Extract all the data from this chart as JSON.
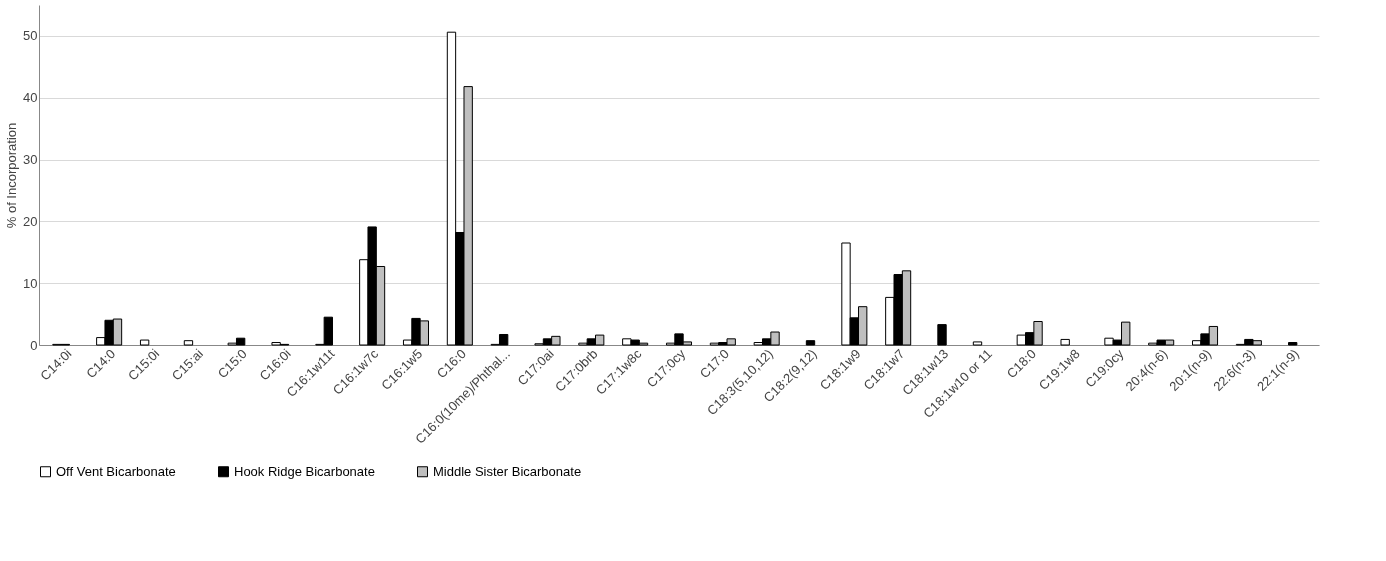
{
  "chart_data": {
    "type": "bar",
    "ylabel": "% of Incorporation",
    "categories": [
      "C14:0i",
      "C14:0",
      "C15:0i",
      "C15:ai",
      "C15:0",
      "C16:0i",
      "C16:1w11t",
      "C16:1w7c",
      "C16:1w5",
      "C16:0",
      "C16:0(10me)/Phthal...",
      "C17:0ai",
      "C17:0brb",
      "C17:1w8c",
      "C17:0cy",
      "C17:0",
      "C18:3(5,10,12)",
      "C18:2(9,12)",
      "C18:1w9",
      "C18:1w7",
      "C18:1w13",
      "C18:1w10 or 11",
      "C18:0",
      "C19:1w8",
      "C19:0cy",
      "20:4(n-6)",
      "20:1(n-9)",
      "22:6(n-3)",
      "22:1(n-9)"
    ],
    "series": [
      {
        "name": "Off Vent Bicarbonate",
        "color": "#ffffff",
        "values": [
          0.1,
          1.2,
          0.8,
          0.7,
          0.3,
          0.4,
          0.1,
          13.8,
          0.8,
          50.6,
          0.1,
          0.2,
          0.3,
          1.0,
          0.3,
          0.3,
          0.4,
          0,
          16.5,
          7.7,
          0,
          0.5,
          1.6,
          0.9,
          1.1,
          0.3,
          0.7,
          0.1,
          0
        ]
      },
      {
        "name": "Hook Ridge Bicarbonate",
        "color": "#000000",
        "values": [
          0.1,
          4.0,
          0,
          0,
          1.1,
          0.1,
          4.5,
          19.1,
          4.3,
          18.2,
          1.7,
          1.0,
          1.0,
          0.8,
          1.8,
          0.4,
          1.0,
          0.7,
          4.4,
          11.4,
          3.3,
          0,
          2.0,
          0,
          0.8,
          0.8,
          1.8,
          0.9,
          0.4
        ]
      },
      {
        "name": "Middle Sister Bicarbonate",
        "color": "#bfbfbf",
        "values": [
          0,
          4.2,
          0,
          0,
          0,
          0,
          0,
          12.7,
          3.9,
          41.8,
          0,
          1.4,
          1.6,
          0.3,
          0.5,
          1.0,
          2.1,
          0,
          6.2,
          12.0,
          0,
          0,
          3.8,
          0,
          3.7,
          0.8,
          3.0,
          0.7,
          0
        ]
      }
    ],
    "ylim": [
      0,
      55
    ],
    "yticks": [
      0,
      10,
      20,
      30,
      40,
      50
    ],
    "grid": "y",
    "legend": "bottom"
  }
}
